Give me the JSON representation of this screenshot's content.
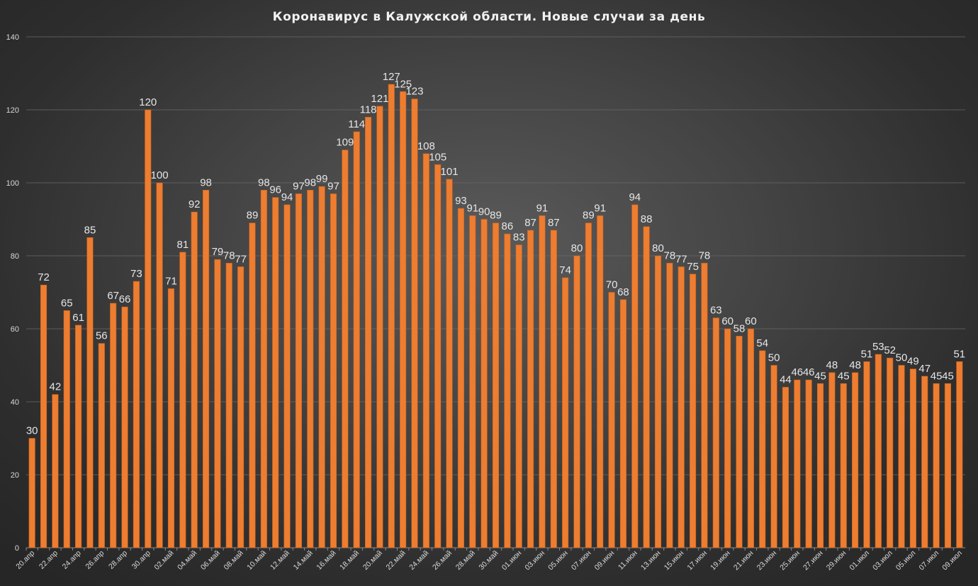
{
  "colors": {
    "bar": "#ed7d31",
    "bar_edge": "#c5601c",
    "text": "#e6e6e6"
  },
  "chart_data": {
    "type": "bar",
    "title": "Коронавирус  в Калужской  области. Новые  случаи  за  день",
    "xlabel": "",
    "ylabel": "",
    "ylim": [
      0,
      140
    ],
    "yticks": [
      0,
      20,
      40,
      60,
      80,
      100,
      120,
      140
    ],
    "grid": true,
    "legend": "none",
    "categories": [
      "20.апр",
      "21.апр",
      "22.апр",
      "23.апр",
      "24.апр",
      "25.апр",
      "26.апр",
      "27.апр",
      "28.апр",
      "29.апр",
      "30.апр",
      "01.май",
      "02.май",
      "03.май",
      "04.май",
      "05.май",
      "06.май",
      "07.май",
      "08.май",
      "09.май",
      "10.май",
      "11.май",
      "12.май",
      "13.май",
      "14.май",
      "15.май",
      "16.май",
      "17.май",
      "18.май",
      "19.май",
      "20.май",
      "21.май",
      "22.май",
      "23.май",
      "24.май",
      "25.май",
      "26.май",
      "27.май",
      "28.май",
      "29.май",
      "30.май",
      "31.май",
      "01.июн",
      "02.июн",
      "03.июн",
      "04.июн",
      "05.июн",
      "06.июн",
      "07.июн",
      "08.июн",
      "09.июн",
      "10.июн",
      "11.июн",
      "12.июн",
      "13.июн",
      "14.июн",
      "15.июн",
      "16.июн",
      "17.июн",
      "18.июн",
      "19.июн",
      "20.июн",
      "21.июн",
      "22.июн",
      "23.июн",
      "24.июн",
      "25.июн",
      "26.июн",
      "27.июн",
      "28.июн",
      "29.июн",
      "30.июн",
      "01.июл",
      "02.июл",
      "03.июл",
      "04.июл",
      "05.июл",
      "06.июл",
      "07.июл",
      "08.июл",
      "09.июл"
    ],
    "shown_x_labels": [
      "20.апр",
      "22.апр",
      "24.апр",
      "26.апр",
      "28.апр",
      "30.апр",
      "02.май",
      "04.май",
      "06.май",
      "08.май",
      "10.май",
      "12.май",
      "14.май",
      "16.май",
      "18.май",
      "20.май",
      "22.май",
      "24.май",
      "26.май",
      "28.май",
      "30.май",
      "01.июн",
      "03.июн",
      "05.июн",
      "07.июн",
      "09.июн",
      "11.июн",
      "13.июн",
      "15.июн",
      "17.июн",
      "19.июн",
      "21.июн",
      "23.июн",
      "25.июн",
      "27.июн",
      "29.июн",
      "01.июл",
      "03.июл",
      "05.июл",
      "07.июл",
      "09.июл"
    ],
    "values": [
      30,
      72,
      42,
      65,
      61,
      85,
      56,
      67,
      66,
      73,
      120,
      100,
      71,
      81,
      92,
      98,
      79,
      78,
      77,
      89,
      98,
      96,
      94,
      97,
      98,
      99,
      97,
      109,
      114,
      118,
      121,
      127,
      125,
      123,
      108,
      105,
      101,
      93,
      91,
      90,
      89,
      86,
      83,
      87,
      91,
      87,
      74,
      80,
      89,
      91,
      70,
      68,
      94,
      88,
      80,
      78,
      77,
      75,
      78,
      63,
      60,
      58,
      60,
      54,
      50,
      44,
      46,
      46,
      45,
      48,
      45,
      48,
      51,
      53,
      52,
      50,
      49,
      47,
      45,
      45,
      51
    ]
  }
}
